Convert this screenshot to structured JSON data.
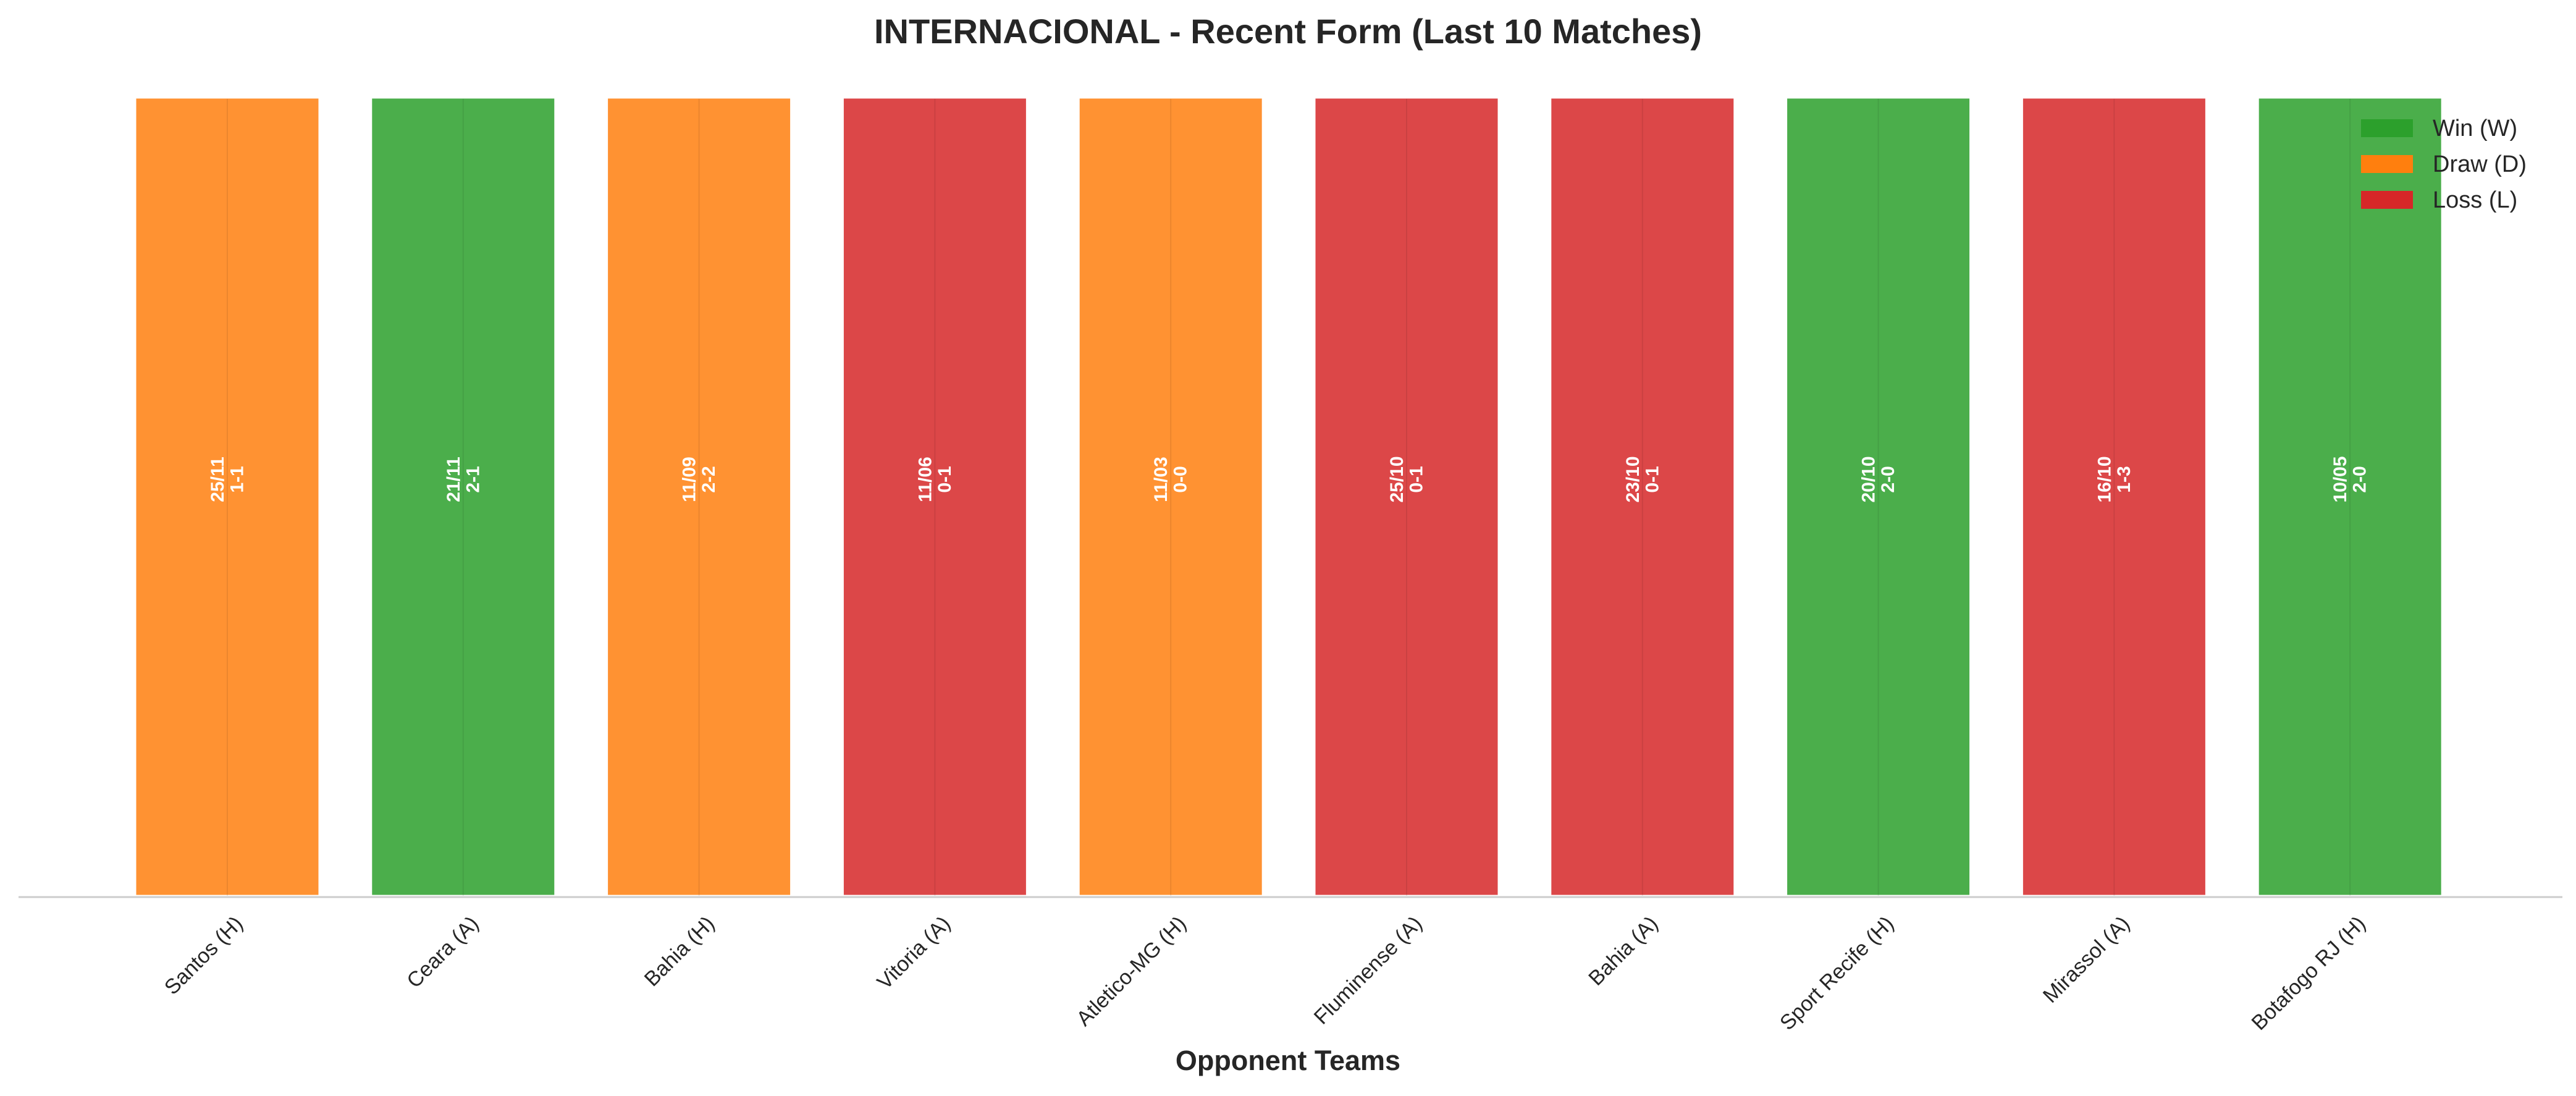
{
  "chart_data": {
    "type": "bar",
    "title": "INTERNACIONAL - Recent Form (Last 10 Matches)",
    "xlabel": "Opponent Teams",
    "ylabel": "",
    "ylim": [
      0,
      1
    ],
    "grid": false,
    "legend_position": "top-right",
    "categories": [
      "Santos (H)",
      "Ceara (A)",
      "Bahia (H)",
      "Vitoria (A)",
      "Atletico-MG (H)",
      "Fluminense (A)",
      "Bahia (A)",
      "Sport Recife (H)",
      "Mirassol (A)",
      "Botafogo RJ (H)"
    ],
    "values": [
      1,
      1,
      1,
      1,
      1,
      1,
      1,
      1,
      1,
      1
    ],
    "results": [
      "D",
      "W",
      "D",
      "L",
      "D",
      "L",
      "L",
      "W",
      "L",
      "W"
    ],
    "dates": [
      "25/11",
      "21/11",
      "11/09",
      "11/06",
      "11/03",
      "25/10",
      "23/10",
      "20/10",
      "16/10",
      "10/05"
    ],
    "scores": [
      "1-1",
      "2-1",
      "2-2",
      "0-1",
      "0-0",
      "0-1",
      "0-1",
      "2-0",
      "1-3",
      "2-0"
    ],
    "legend": [
      {
        "key": "W",
        "label": "Win (W)"
      },
      {
        "key": "D",
        "label": "Draw (D)"
      },
      {
        "key": "L",
        "label": "Loss (L)"
      }
    ],
    "colors": {
      "W": "#2ca02c",
      "D": "#ff7f0e",
      "L": "#d62728"
    }
  }
}
